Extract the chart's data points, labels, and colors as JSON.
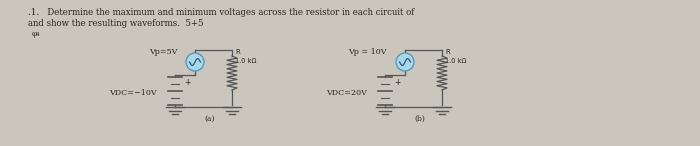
{
  "background_color": "#cac6be",
  "page_color": "#e2ddd5",
  "title_line1": ".1.   Determine the maximum and minimum voltages across the resistor in each circuit of",
  "title_line2": "and show the resulting waveforms.  5+5",
  "subtitle": "φ₄",
  "circuit_a_label": "(a)",
  "circuit_b_label": "(b)",
  "vp5v": "Vp=5V",
  "vdc10v": "VDC=−10V",
  "vp10v": "Vp = 10V",
  "vdc20v": "VDC=20V",
  "r_label": "R",
  "r_val": "1.0 kΩ",
  "ac_circle_color": "#a8d8ea",
  "ac_circle_edge": "#5599bb",
  "wire_color": "#555555",
  "text_color": "#2a2520",
  "figsize": [
    7.0,
    1.46
  ],
  "dpi": 100
}
